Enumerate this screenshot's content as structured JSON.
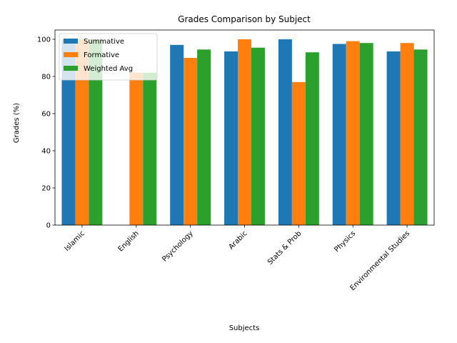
{
  "chart_data": {
    "type": "bar",
    "title": "Grades Comparison by Subject",
    "xlabel": "Subjects",
    "ylabel": "Grades (%)",
    "ylim": [
      0,
      105
    ],
    "yticks": [
      0,
      20,
      40,
      60,
      80,
      100
    ],
    "categories": [
      "Islamic",
      "English",
      "Psychology",
      "Arabic",
      "Stats & Prob",
      "Physics",
      "Environmental Studies"
    ],
    "series": [
      {
        "name": "Summative",
        "color": "#1f77b4",
        "values": [
          100,
          0,
          97,
          93.5,
          100,
          97.5,
          93.5
        ]
      },
      {
        "name": "Formative",
        "color": "#ff7f0e",
        "values": [
          100,
          82,
          90,
          100,
          77,
          99,
          98
        ]
      },
      {
        "name": "Weighted Avg",
        "color": "#2ca02c",
        "values": [
          100,
          82,
          94.5,
          95.5,
          93,
          98,
          94.5
        ]
      }
    ],
    "legend_position": "top-left",
    "grid": false,
    "xtick_rotation": 45
  }
}
